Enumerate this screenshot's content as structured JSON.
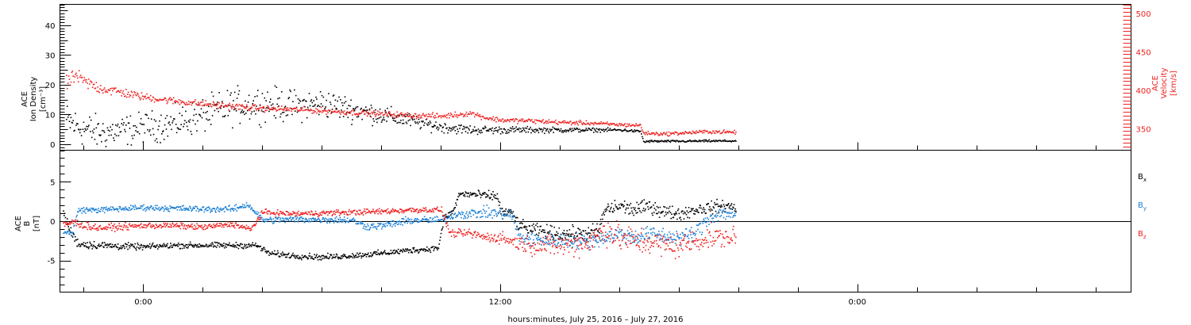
{
  "chart_data": [
    {
      "type": "scatter",
      "panel": "top",
      "ylabel_lines": [
        "ACE",
        "Ion Density",
        "[cm⁻³]"
      ],
      "y2label_lines": [
        "ACE",
        "Velocity",
        "[km/s]"
      ],
      "ylim": [
        -2,
        47
      ],
      "y2lim": [
        322,
        512
      ],
      "yticks": [
        0,
        10,
        20,
        30,
        40
      ],
      "y2ticks": [
        350,
        400,
        450,
        500
      ],
      "series": [
        {
          "color": "#000000",
          "axis": "left",
          "keyframes": [
            [
              -2.6,
              8
            ],
            [
              -2.2,
              6
            ],
            [
              -1.5,
              4
            ],
            [
              -0.5,
              5
            ],
            [
              0,
              6
            ],
            [
              1,
              7
            ],
            [
              2,
              10
            ],
            [
              3,
              13
            ],
            [
              4,
              14
            ],
            [
              5,
              13
            ],
            [
              6,
              14
            ],
            [
              7,
              12
            ],
            [
              8,
              10
            ],
            [
              9,
              8
            ],
            [
              10,
              6
            ],
            [
              11,
              5
            ],
            [
              12,
              5
            ],
            [
              13,
              5
            ],
            [
              14,
              5
            ],
            [
              15,
              5
            ],
            [
              16,
              5
            ],
            [
              16.7,
              4.5
            ],
            [
              16.8,
              1
            ],
            [
              17,
              1.2
            ],
            [
              18,
              1.2
            ],
            [
              19,
              1.3
            ],
            [
              19.9,
              1.3
            ]
          ],
          "spread": [
            [
              -2.6,
              5
            ],
            [
              0,
              4
            ],
            [
              3,
              5
            ],
            [
              6,
              4
            ],
            [
              9,
              2
            ],
            [
              10,
              1.5
            ],
            [
              12,
              1
            ],
            [
              16.8,
              0.3
            ],
            [
              19.9,
              0.3
            ]
          ]
        },
        {
          "color": "#ee2222",
          "axis": "right",
          "keyframes": [
            [
              -2.6,
              408
            ],
            [
              -2.3,
              420
            ],
            [
              -2.0,
              412
            ],
            [
              -1.5,
              404
            ],
            [
              -1,
              400
            ],
            [
              0,
              392
            ],
            [
              1,
              387
            ],
            [
              2,
              383
            ],
            [
              3,
              380
            ],
            [
              4,
              377
            ],
            [
              5,
              376
            ],
            [
              6,
              374
            ],
            [
              7,
              372
            ],
            [
              8,
              370
            ],
            [
              9,
              368
            ],
            [
              10,
              367
            ],
            [
              11,
              371
            ],
            [
              11.5,
              365
            ],
            [
              12,
              362
            ],
            [
              13,
              361
            ],
            [
              14,
              359
            ],
            [
              15,
              358
            ],
            [
              16,
              356
            ],
            [
              16.7,
              355
            ],
            [
              16.8,
              345
            ],
            [
              17.5,
              344
            ],
            [
              18,
              345
            ],
            [
              19,
              347
            ],
            [
              19.9,
              346
            ]
          ],
          "spread": [
            [
              -2.6,
              8
            ],
            [
              0,
              4
            ],
            [
              5,
              3
            ],
            [
              10,
              3
            ],
            [
              16,
              2
            ],
            [
              19.9,
              2
            ]
          ]
        }
      ]
    },
    {
      "type": "scatter",
      "panel": "bottom",
      "ylabel_lines": [
        "ACE",
        "B",
        "[nT]"
      ],
      "ylim": [
        -9,
        9
      ],
      "yticks": [
        -5,
        0,
        5
      ],
      "zero_line": true,
      "series": [
        {
          "name": "B",
          "subscript": "x",
          "color": "#000000",
          "keyframes": [
            [
              -2.7,
              1.2
            ],
            [
              -2.5,
              -1
            ],
            [
              -2.2,
              -2.8
            ],
            [
              -1.5,
              -3
            ],
            [
              0,
              -3.2
            ],
            [
              1,
              -3
            ],
            [
              2,
              -3
            ],
            [
              3,
              -3
            ],
            [
              3.8,
              -3
            ],
            [
              4.2,
              -4
            ],
            [
              5,
              -4.3
            ],
            [
              6,
              -4.5
            ],
            [
              7,
              -4.3
            ],
            [
              8,
              -4
            ],
            [
              9,
              -3.6
            ],
            [
              9.5,
              -3.5
            ],
            [
              9.9,
              -3.3
            ],
            [
              10.1,
              0.5
            ],
            [
              10.4,
              1.3
            ],
            [
              10.6,
              3.5
            ],
            [
              11,
              3.5
            ],
            [
              11.5,
              3.3
            ],
            [
              11.9,
              3.2
            ],
            [
              12,
              1.3
            ],
            [
              12.4,
              1
            ],
            [
              12.6,
              -0.5
            ],
            [
              13,
              -1
            ],
            [
              14,
              -1.5
            ],
            [
              15,
              -1.5
            ],
            [
              15.3,
              -1
            ],
            [
              15.5,
              1.5
            ],
            [
              16,
              2
            ],
            [
              16.5,
              1.5
            ],
            [
              17,
              2
            ],
            [
              17.5,
              1.3
            ],
            [
              18,
              1
            ],
            [
              18.5,
              1.5
            ],
            [
              19,
              1.8
            ],
            [
              19.5,
              2
            ],
            [
              19.9,
              1.8
            ]
          ],
          "spread": [
            [
              -2.7,
              0.5
            ],
            [
              0,
              0.3
            ],
            [
              10,
              0.3
            ],
            [
              12.6,
              0.6
            ],
            [
              15,
              0.8
            ],
            [
              19.9,
              0.6
            ]
          ]
        },
        {
          "name": "B",
          "subscript": "y",
          "color": "#1a7fd4",
          "keyframes": [
            [
              -2.7,
              -1.3
            ],
            [
              -2.4,
              -1.5
            ],
            [
              -2.2,
              1.5
            ],
            [
              -1.5,
              1.5
            ],
            [
              0,
              1.8
            ],
            [
              1,
              1.7
            ],
            [
              2,
              1.6
            ],
            [
              3,
              1.6
            ],
            [
              3.5,
              2.2
            ],
            [
              4,
              0.2
            ],
            [
              5,
              0.3
            ],
            [
              6,
              0.3
            ],
            [
              7,
              0.2
            ],
            [
              7.5,
              -0.6
            ],
            [
              8,
              -0.5
            ],
            [
              9,
              0.2
            ],
            [
              10,
              0.2
            ],
            [
              10.5,
              1
            ],
            [
              11,
              1
            ],
            [
              11.5,
              1.2
            ],
            [
              12,
              1
            ],
            [
              12.4,
              0.8
            ],
            [
              12.6,
              -2
            ],
            [
              13,
              -2.3
            ],
            [
              14,
              -2.4
            ],
            [
              15,
              -2.5
            ],
            [
              15.5,
              -2
            ],
            [
              16,
              -1.5
            ],
            [
              16.5,
              -2
            ],
            [
              17,
              -1.5
            ],
            [
              17.5,
              -1.8
            ],
            [
              18,
              -2
            ],
            [
              18.5,
              -1.5
            ],
            [
              19,
              0.5
            ],
            [
              19.5,
              1.2
            ],
            [
              19.9,
              0.8
            ]
          ],
          "spread": [
            [
              -2.7,
              0.3
            ],
            [
              0,
              0.3
            ],
            [
              10,
              0.4
            ],
            [
              12.6,
              0.7
            ],
            [
              15,
              0.8
            ],
            [
              19.9,
              0.8
            ]
          ]
        },
        {
          "name": "B",
          "subscript": "z",
          "color": "#ee2222",
          "keyframes": [
            [
              -2.7,
              -0.5
            ],
            [
              -2.4,
              0
            ],
            [
              -2,
              -0.5
            ],
            [
              -1.5,
              -0.8
            ],
            [
              0,
              -0.5
            ],
            [
              1,
              -0.5
            ],
            [
              2,
              -0.7
            ],
            [
              3,
              -0.3
            ],
            [
              3.6,
              -1
            ],
            [
              4,
              1.2
            ],
            [
              5,
              1
            ],
            [
              6,
              1.1
            ],
            [
              7,
              1.2
            ],
            [
              8,
              1.3
            ],
            [
              9,
              1.5
            ],
            [
              10,
              1.5
            ],
            [
              10.3,
              -1.5
            ],
            [
              11,
              -1.5
            ],
            [
              11.5,
              -2
            ],
            [
              12,
              -2
            ],
            [
              12.4,
              -2.5
            ],
            [
              13,
              -3
            ],
            [
              14,
              -3
            ],
            [
              15,
              -2.5
            ],
            [
              15.5,
              -1
            ],
            [
              16,
              -2
            ],
            [
              16.5,
              -2.5
            ],
            [
              17,
              -2.5
            ],
            [
              17.5,
              -3
            ],
            [
              18,
              -3
            ],
            [
              18.5,
              -2.5
            ],
            [
              19,
              -2
            ],
            [
              19.5,
              -2
            ],
            [
              19.9,
              -2
            ]
          ],
          "spread": [
            [
              -2.7,
              0.4
            ],
            [
              0,
              0.3
            ],
            [
              10,
              0.3
            ],
            [
              12,
              0.6
            ],
            [
              14,
              1.2
            ],
            [
              16,
              1.5
            ],
            [
              19.9,
              1.0
            ]
          ]
        }
      ]
    }
  ],
  "time_axis": {
    "range_hours": [
      -2.8,
      33.2
    ],
    "major_tick_hours": [
      0,
      12,
      24
    ],
    "tick_labels": [
      "0:00",
      "12:00",
      "0:00"
    ],
    "minor_step_hours": 2,
    "xlabel": "hours:minutes, July 25, 2016 – July 27, 2016"
  },
  "colors": {
    "black": "#000000",
    "red": "#ee2222",
    "blue": "#1a7fd4"
  }
}
